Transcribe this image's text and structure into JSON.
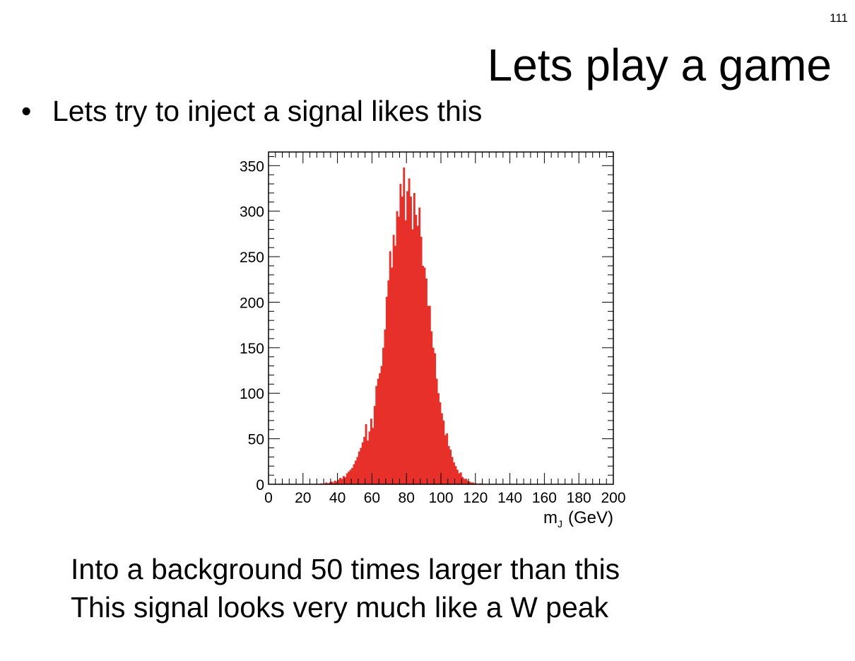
{
  "slide": {
    "page_number": "111",
    "title": "Lets play a game",
    "bullet_symbol": "•",
    "bullet": "Lets try to inject a signal likes this",
    "lines": [
      "Into a background 50 times larger than this",
      "This signal looks very much like a W peak"
    ]
  },
  "colors": {
    "bars": "#e8302a",
    "axis": "#000000",
    "background": "#ffffff"
  },
  "chart_data": {
    "type": "bar",
    "xlabel_main": "m",
    "xlabel_sub": "J",
    "xlabel_unit": "(GeV)",
    "xlabel": "mJ (GeV)",
    "ylabel": "",
    "title": "",
    "xlim": [
      0,
      200
    ],
    "ylim": [
      0,
      365
    ],
    "x_ticks": [
      0,
      20,
      40,
      60,
      80,
      100,
      120,
      140,
      160,
      180,
      200
    ],
    "x_tick_labels": [
      "0",
      "20",
      "40",
      "60",
      "80",
      "100",
      "120",
      "140",
      "160",
      "180",
      "200"
    ],
    "y_ticks": [
      0,
      50,
      100,
      150,
      200,
      250,
      300,
      350
    ],
    "y_tick_labels": [
      "0",
      "50",
      "100",
      "150",
      "200",
      "250",
      "300",
      "350"
    ],
    "grid": false,
    "legend": "none",
    "bin_width": 1,
    "bin_start": 30,
    "values": [
      1,
      0,
      1,
      2,
      1,
      2,
      3,
      2,
      4,
      3,
      5,
      7,
      6,
      9,
      8,
      12,
      14,
      16,
      18,
      22,
      26,
      30,
      36,
      40,
      46,
      52,
      66,
      48,
      58,
      72,
      62,
      86,
      108,
      116,
      122,
      130,
      150,
      170,
      206,
      224,
      256,
      238,
      274,
      262,
      300,
      294,
      330,
      316,
      348,
      290,
      322,
      336,
      316,
      280,
      320,
      296,
      284,
      304,
      272,
      240,
      238,
      226,
      196,
      196,
      168,
      150,
      144,
      116,
      100,
      90,
      78,
      70,
      54,
      56,
      42,
      38,
      30,
      24,
      20,
      16,
      12,
      13,
      8,
      6,
      6,
      4,
      3,
      2,
      2,
      1,
      1,
      0,
      1,
      1
    ]
  }
}
